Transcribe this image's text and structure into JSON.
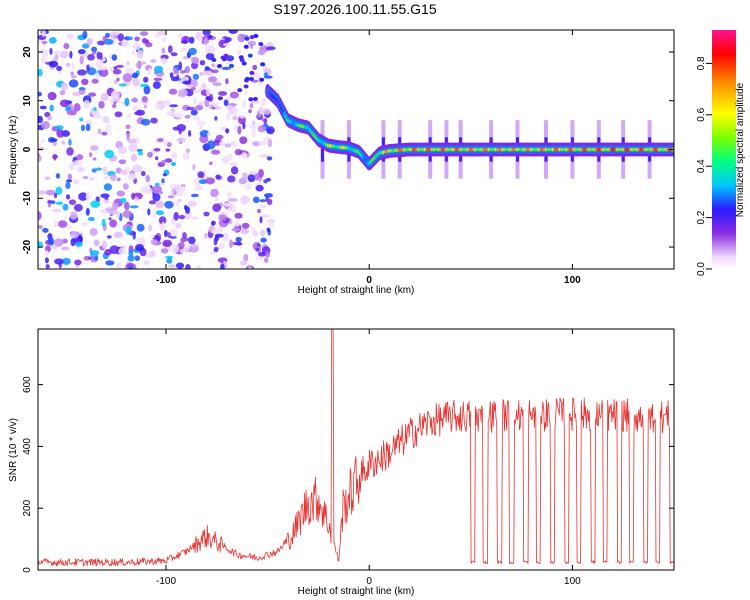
{
  "figure_title": "S197.2026.100.11.55.G15",
  "colors": {
    "snr_line": "#e8322f",
    "axis": "#000000",
    "background": "#ffffff"
  },
  "chart_data": [
    {
      "type": "heatmap",
      "name": "spectrogram",
      "title": "S197.2026.100.11.55.G15",
      "xlabel": "Height of straight line (km)",
      "ylabel": "Frequency (Hz)",
      "xlim": [
        -163,
        150
      ],
      "ylim": [
        -24.5,
        24.5
      ],
      "xticks": [
        {
          "value": -100,
          "label": "-100"
        },
        {
          "value": 0,
          "label": "0"
        },
        {
          "value": 100,
          "label": "100"
        }
      ],
      "yticks": [
        {
          "value": -20,
          "label": "-20"
        },
        {
          "value": -10,
          "label": "-10"
        },
        {
          "value": 0,
          "label": "0"
        },
        {
          "value": 10,
          "label": "10"
        },
        {
          "value": 20,
          "label": "20"
        }
      ],
      "colorbar": {
        "label": "Normalized spectral amplitude",
        "range": [
          0,
          0.93
        ],
        "ticks": [
          {
            "value": 0.0,
            "label": "0.0"
          },
          {
            "value": 0.2,
            "label": "0.2"
          },
          {
            "value": 0.4,
            "label": "0.4"
          },
          {
            "value": 0.6,
            "label": "0.6"
          },
          {
            "value": 0.8,
            "label": "0.8"
          }
        ]
      },
      "noise_regions": [
        {
          "x_range": [
            -163,
            -88
          ],
          "freq_range": [
            -24.5,
            24.5
          ],
          "amplitude": 0.15
        },
        {
          "x_range": [
            -88,
            -48
          ],
          "freq_range": [
            -24.5,
            24.5
          ],
          "amplitude": 0.12
        }
      ],
      "ridge": [
        {
          "height": -50,
          "freq": 12,
          "amplitude": 0.22
        },
        {
          "height": -45,
          "freq": 10,
          "amplitude": 0.28
        },
        {
          "height": -40,
          "freq": 6,
          "amplitude": 0.45
        },
        {
          "height": -35,
          "freq": 5,
          "amplitude": 0.55
        },
        {
          "height": -30,
          "freq": 4.5,
          "amplitude": 0.6
        },
        {
          "height": -25,
          "freq": 2,
          "amplitude": 0.5
        },
        {
          "height": -20,
          "freq": 0.8,
          "amplitude": 0.65
        },
        {
          "height": -15,
          "freq": 0.5,
          "amplitude": 0.7
        },
        {
          "height": -10,
          "freq": 0.3,
          "amplitude": 0.6
        },
        {
          "height": -5,
          "freq": -0.5,
          "amplitude": 0.5
        },
        {
          "height": 0,
          "freq": -3,
          "amplitude": 0.45
        },
        {
          "height": 5,
          "freq": -0.8,
          "amplitude": 0.7
        },
        {
          "height": 10,
          "freq": -0.3,
          "amplitude": 0.8
        },
        {
          "height": 20,
          "freq": 0,
          "amplitude": 0.85
        },
        {
          "height": 40,
          "freq": 0,
          "amplitude": 0.85
        },
        {
          "height": 60,
          "freq": 0,
          "amplitude": 0.8
        },
        {
          "height": 80,
          "freq": 0,
          "amplitude": 0.8
        },
        {
          "height": 100,
          "freq": 0,
          "amplitude": 0.85
        },
        {
          "height": 120,
          "freq": 0,
          "amplitude": 0.9
        },
        {
          "height": 150,
          "freq": 0,
          "amplitude": 0.85
        }
      ],
      "vertical_streak_heights": [
        -23,
        -10,
        7,
        15,
        30,
        38,
        45,
        60,
        73,
        87,
        100,
        113,
        125,
        138
      ]
    },
    {
      "type": "line",
      "name": "snr",
      "title": "",
      "xlabel": "Height of straight line (km)",
      "ylabel": "SNR (10 * v/v)",
      "xlim": [
        -163,
        150
      ],
      "ylim": [
        0,
        780
      ],
      "xticks": [
        {
          "value": -100,
          "label": "-100"
        },
        {
          "value": 0,
          "label": "0"
        },
        {
          "value": 100,
          "label": "100"
        }
      ],
      "yticks": [
        {
          "value": 0,
          "label": "0"
        },
        {
          "value": 200,
          "label": "200"
        },
        {
          "value": 400,
          "label": "400"
        },
        {
          "value": 600,
          "label": "600"
        }
      ],
      "series": [
        {
          "name": "SNR",
          "envelope": [
            {
              "height": -163,
              "snr": 25
            },
            {
              "height": -120,
              "snr": 25
            },
            {
              "height": -100,
              "snr": 30
            },
            {
              "height": -90,
              "snr": 60
            },
            {
              "height": -80,
              "snr": 110
            },
            {
              "height": -75,
              "snr": 90
            },
            {
              "height": -65,
              "snr": 50
            },
            {
              "height": -55,
              "snr": 40
            },
            {
              "height": -45,
              "snr": 60
            },
            {
              "height": -38,
              "snr": 110
            },
            {
              "height": -30,
              "snr": 220
            },
            {
              "height": -25,
              "snr": 230
            },
            {
              "height": -20,
              "snr": 150
            },
            {
              "height": -15,
              "snr": 30
            },
            {
              "height": -13,
              "snr": 200
            },
            {
              "height": -5,
              "snr": 300
            },
            {
              "height": 0,
              "snr": 340
            },
            {
              "height": 10,
              "snr": 380
            },
            {
              "height": 20,
              "snr": 440
            },
            {
              "height": 30,
              "snr": 480
            },
            {
              "height": 40,
              "snr": 495
            },
            {
              "height": 60,
              "snr": 500
            },
            {
              "height": 100,
              "snr": 505
            },
            {
              "height": 150,
              "snr": 495
            }
          ],
          "spike": {
            "height": -18,
            "snr": 780
          },
          "dropouts": {
            "snr": 25,
            "heights": [
              50,
              56,
              63,
              69,
              76,
              82,
              89,
              96,
              102,
              109,
              115,
              122,
              128,
              135,
              141,
              148
            ]
          }
        }
      ]
    }
  ]
}
